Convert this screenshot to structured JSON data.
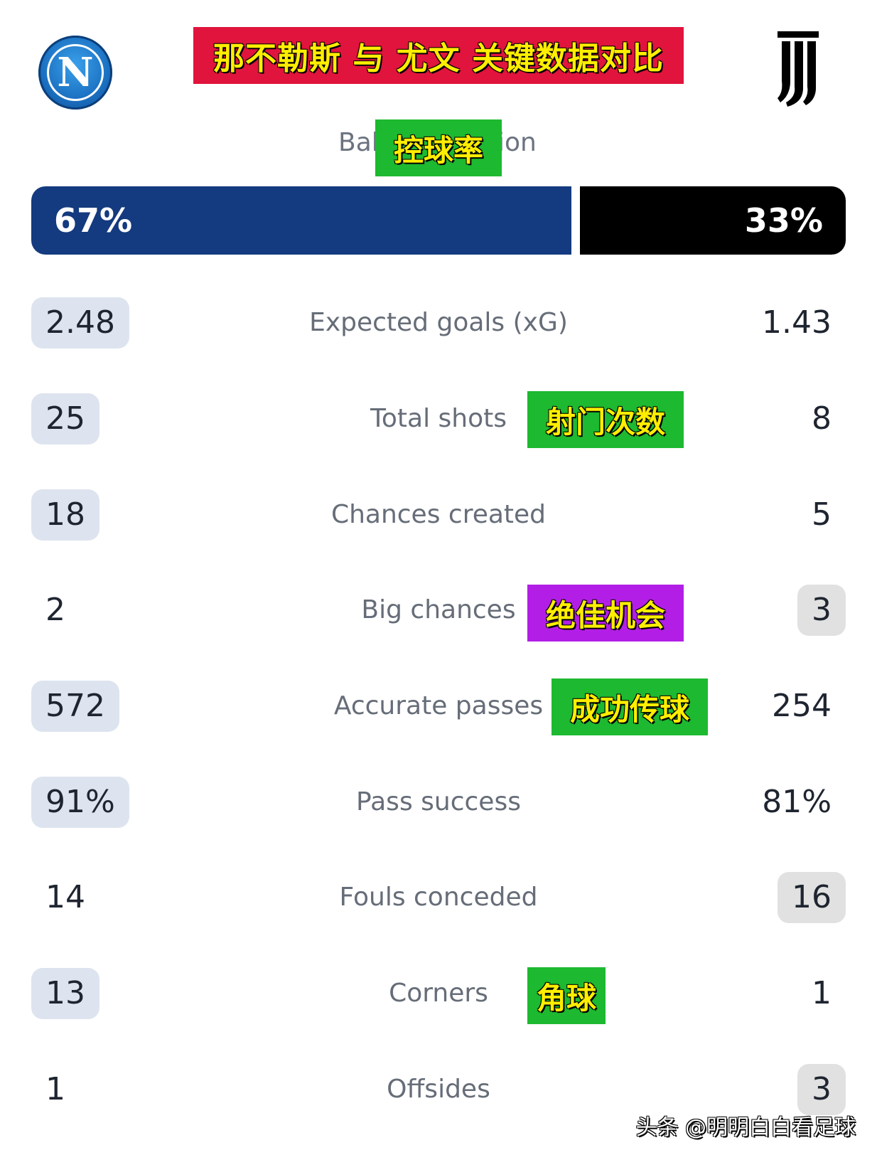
{
  "header": {
    "home_logo_letter": "N",
    "away_logo": "juventus-j-mark",
    "title": "那不勒斯 与 尤文 关键数据对比",
    "title_bg": "#e0143c",
    "title_color": "#ffee00"
  },
  "possession": {
    "label_left": "Bal",
    "label_right": "ion",
    "tag": "控球率",
    "home": "67%",
    "away": "33%",
    "home_fraction": 0.67,
    "home_color": "#143a7f",
    "away_color": "#000000"
  },
  "stats": [
    {
      "label": "Expected goals (xG)",
      "home": "2.48",
      "away": "1.43",
      "leader": "home"
    },
    {
      "label": "Total shots",
      "home": "25",
      "away": "8",
      "leader": "home",
      "tag": "射门次数",
      "tag_color": "green"
    },
    {
      "label": "Chances created",
      "home": "18",
      "away": "5",
      "leader": "home"
    },
    {
      "label": "Big chances",
      "home": "2",
      "away": "3",
      "leader": "away",
      "tag": "绝佳机会",
      "tag_color": "purple"
    },
    {
      "label": "Accurate passes",
      "home": "572",
      "away": "254",
      "leader": "home",
      "tag": "成功传球",
      "tag_color": "green"
    },
    {
      "label": "Pass success",
      "home": "91%",
      "away": "81%",
      "leader": "home"
    },
    {
      "label": "Fouls conceded",
      "home": "14",
      "away": "16",
      "leader": "away"
    },
    {
      "label": "Corners",
      "home": "13",
      "away": "1",
      "leader": "home",
      "tag": "角球",
      "tag_color": "green"
    },
    {
      "label": "Offsides",
      "home": "1",
      "away": "3",
      "leader": "away"
    }
  ],
  "watermark": "头条 @明明白白看足球"
}
